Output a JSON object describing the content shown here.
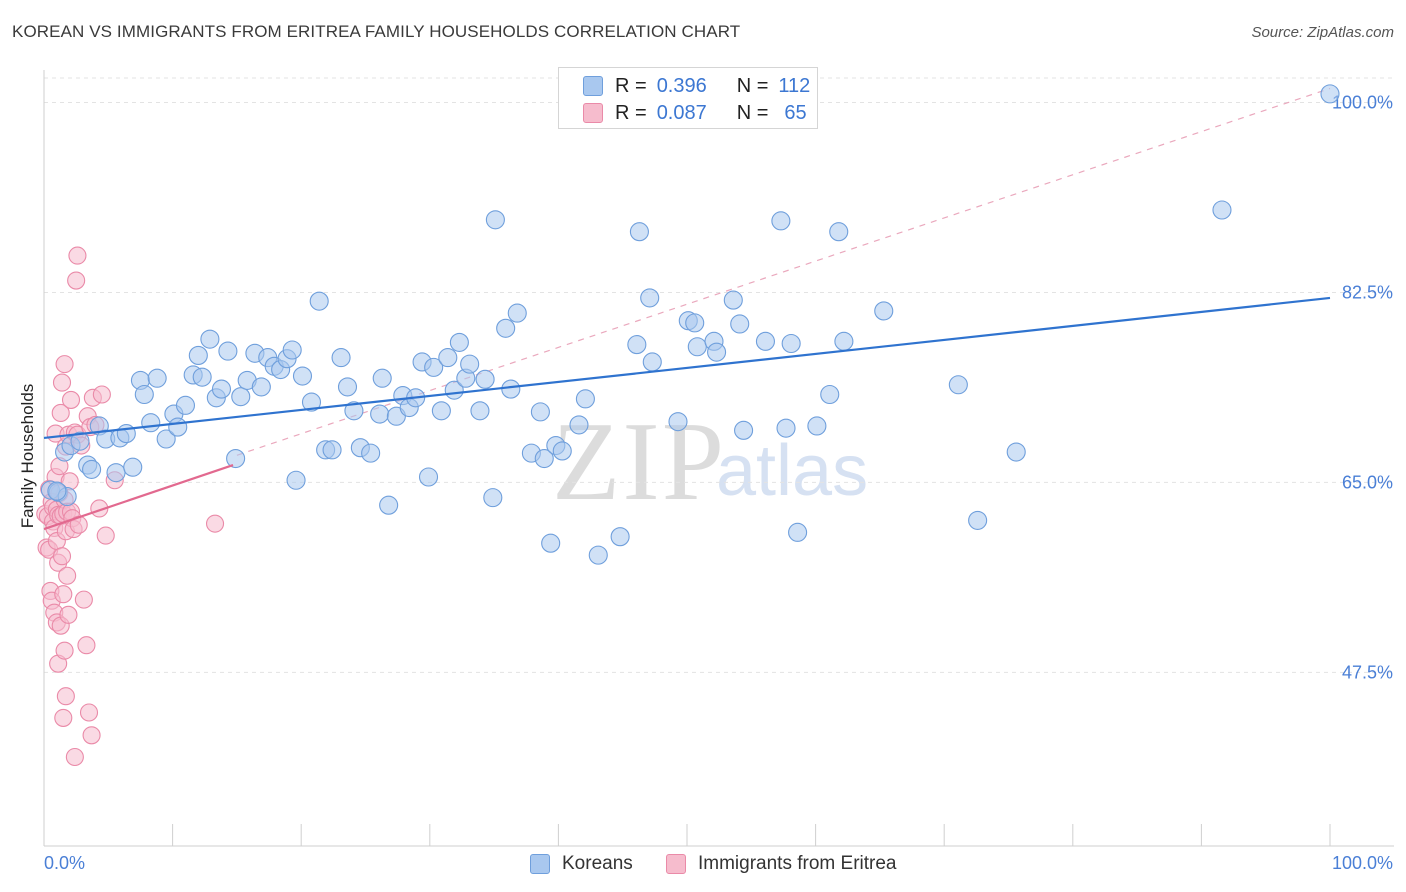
{
  "title": "KOREAN VS IMMIGRANTS FROM ERITREA FAMILY HOUSEHOLDS CORRELATION CHART",
  "source": "Source: ZipAtlas.com",
  "watermark": {
    "zip": "ZIP",
    "atlas": "atlas"
  },
  "legend": {
    "r_label": "R =",
    "n_label": "N =",
    "series": [
      {
        "name": "Koreans",
        "r": "0.396",
        "n": "112"
      },
      {
        "name": "Immigrants from Eritrea",
        "r": "0.087",
        "n": "65"
      }
    ]
  },
  "colors": {
    "blue_fill": "#a9c8ef",
    "blue_stroke": "#6f9fdc",
    "blue_line": "#2f73cf",
    "pink_fill": "#f6bccd",
    "pink_stroke": "#ea8aa8",
    "pink_line": "#e2698f",
    "grid": "#e3e3e3",
    "axis_label": "#4a7fd6"
  },
  "chart_data": {
    "type": "scatter",
    "title": "KOREAN VS IMMIGRANTS FROM ERITREA FAMILY HOUSEHOLDS CORRELATION CHART",
    "xlabel": "",
    "ylabel": "Family Households",
    "xlim": [
      0,
      100
    ],
    "ylim": [
      31.5,
      103
    ],
    "x_tick_labels": [
      "0.0%",
      "100.0%"
    ],
    "y_ticks": [
      47.5,
      65.0,
      82.5,
      100.0
    ],
    "y_tick_labels": [
      "47.5%",
      "65.0%",
      "82.5%",
      "100.0%"
    ],
    "grid": true,
    "series": [
      {
        "name": "Koreans",
        "color": "blue",
        "trend": {
          "x": [
            0,
            100
          ],
          "y": [
            69.1,
            82.0
          ]
        },
        "diagonal": {
          "x": [
            15,
            100
          ],
          "y": [
            67.5,
            101.3
          ]
        },
        "points": [
          [
            0.5,
            64.3
          ],
          [
            1.1,
            64.1
          ],
          [
            1.8,
            63.7
          ],
          [
            1.6,
            67.8
          ],
          [
            2.1,
            68.4
          ],
          [
            2.8,
            68.8
          ],
          [
            3.4,
            66.6
          ],
          [
            3.7,
            66.2
          ],
          [
            4.3,
            70.2
          ],
          [
            4.8,
            69.0
          ],
          [
            5.6,
            65.9
          ],
          [
            5.9,
            69.1
          ],
          [
            6.4,
            69.5
          ],
          [
            6.9,
            66.4
          ],
          [
            7.5,
            74.4
          ],
          [
            7.8,
            73.1
          ],
          [
            8.3,
            70.5
          ],
          [
            8.8,
            74.6
          ],
          [
            9.5,
            69.0
          ],
          [
            10.1,
            71.3
          ],
          [
            10.4,
            70.1
          ],
          [
            11.0,
            72.1
          ],
          [
            11.6,
            74.9
          ],
          [
            12.0,
            76.7
          ],
          [
            12.3,
            74.7
          ],
          [
            12.9,
            78.2
          ],
          [
            13.4,
            72.8
          ],
          [
            13.8,
            73.6
          ],
          [
            14.3,
            77.1
          ],
          [
            14.9,
            67.2
          ],
          [
            15.3,
            72.9
          ],
          [
            15.8,
            74.4
          ],
          [
            16.4,
            76.9
          ],
          [
            16.9,
            73.8
          ],
          [
            17.4,
            76.5
          ],
          [
            17.9,
            75.7
          ],
          [
            18.4,
            75.4
          ],
          [
            18.9,
            76.4
          ],
          [
            19.3,
            77.2
          ],
          [
            19.6,
            65.2
          ],
          [
            20.1,
            74.8
          ],
          [
            20.8,
            72.4
          ],
          [
            21.4,
            81.7
          ],
          [
            21.9,
            68.0
          ],
          [
            22.4,
            68.0
          ],
          [
            23.1,
            76.5
          ],
          [
            23.6,
            73.8
          ],
          [
            24.1,
            71.6
          ],
          [
            24.6,
            68.2
          ],
          [
            25.4,
            67.7
          ],
          [
            26.1,
            71.3
          ],
          [
            26.3,
            74.6
          ],
          [
            26.8,
            62.9
          ],
          [
            27.4,
            71.1
          ],
          [
            27.9,
            73.0
          ],
          [
            28.4,
            71.9
          ],
          [
            28.9,
            72.8
          ],
          [
            29.4,
            76.1
          ],
          [
            29.9,
            65.5
          ],
          [
            30.3,
            75.6
          ],
          [
            30.9,
            71.6
          ],
          [
            31.4,
            76.5
          ],
          [
            31.9,
            73.5
          ],
          [
            32.3,
            77.9
          ],
          [
            32.8,
            74.6
          ],
          [
            33.1,
            75.9
          ],
          [
            33.9,
            71.6
          ],
          [
            34.3,
            74.5
          ],
          [
            34.9,
            63.6
          ],
          [
            35.1,
            89.2
          ],
          [
            35.9,
            79.2
          ],
          [
            36.3,
            73.6
          ],
          [
            36.8,
            80.6
          ],
          [
            37.9,
            67.7
          ],
          [
            38.6,
            71.5
          ],
          [
            38.9,
            67.2
          ],
          [
            39.4,
            59.4
          ],
          [
            39.8,
            68.4
          ],
          [
            40.3,
            67.9
          ],
          [
            41.6,
            70.3
          ],
          [
            42.1,
            72.7
          ],
          [
            43.1,
            58.3
          ],
          [
            44.8,
            60.0
          ],
          [
            46.1,
            77.7
          ],
          [
            46.3,
            88.1
          ],
          [
            47.1,
            82.0
          ],
          [
            47.3,
            76.1
          ],
          [
            49.3,
            70.6
          ],
          [
            50.1,
            79.9
          ],
          [
            50.6,
            79.7
          ],
          [
            50.8,
            77.5
          ],
          [
            52.1,
            78.0
          ],
          [
            52.3,
            77.0
          ],
          [
            53.6,
            81.8
          ],
          [
            54.1,
            79.6
          ],
          [
            54.4,
            69.8
          ],
          [
            56.1,
            78.0
          ],
          [
            57.3,
            89.1
          ],
          [
            57.7,
            70.0
          ],
          [
            58.1,
            77.8
          ],
          [
            58.6,
            60.4
          ],
          [
            60.1,
            70.2
          ],
          [
            61.1,
            73.1
          ],
          [
            61.8,
            88.1
          ],
          [
            62.2,
            78.0
          ],
          [
            65.3,
            80.8
          ],
          [
            71.1,
            74.0
          ],
          [
            72.6,
            61.5
          ],
          [
            75.6,
            67.8
          ],
          [
            91.6,
            90.1
          ],
          [
            100.0,
            100.8
          ],
          [
            1.0,
            64.2
          ]
        ]
      },
      {
        "name": "Immigrants from Eritrea",
        "color": "pink",
        "trend": {
          "x": [
            0,
            14.7
          ],
          "y": [
            60.7,
            66.6
          ]
        },
        "points": [
          [
            0.1,
            62.1
          ],
          [
            0.2,
            59.0
          ],
          [
            0.3,
            61.9
          ],
          [
            0.4,
            64.4
          ],
          [
            0.4,
            58.8
          ],
          [
            0.5,
            55.0
          ],
          [
            0.6,
            63.2
          ],
          [
            0.6,
            54.1
          ],
          [
            0.7,
            62.7
          ],
          [
            0.7,
            61.4
          ],
          [
            0.8,
            60.8
          ],
          [
            0.8,
            53.0
          ],
          [
            0.9,
            69.5
          ],
          [
            0.9,
            65.5
          ],
          [
            1.0,
            62.5
          ],
          [
            1.0,
            59.6
          ],
          [
            1.0,
            52.1
          ],
          [
            1.1,
            62.0
          ],
          [
            1.1,
            57.6
          ],
          [
            1.1,
            48.3
          ],
          [
            1.2,
            66.5
          ],
          [
            1.2,
            64.0
          ],
          [
            1.3,
            71.4
          ],
          [
            1.3,
            61.9
          ],
          [
            1.3,
            51.8
          ],
          [
            1.4,
            74.2
          ],
          [
            1.4,
            58.2
          ],
          [
            1.5,
            62.1
          ],
          [
            1.5,
            54.7
          ],
          [
            1.5,
            43.3
          ],
          [
            1.6,
            75.9
          ],
          [
            1.6,
            63.4
          ],
          [
            1.6,
            49.5
          ],
          [
            1.7,
            68.3
          ],
          [
            1.7,
            60.5
          ],
          [
            1.7,
            45.3
          ],
          [
            1.8,
            62.3
          ],
          [
            1.8,
            56.4
          ],
          [
            1.9,
            69.4
          ],
          [
            1.9,
            52.8
          ],
          [
            2.0,
            65.1
          ],
          [
            2.1,
            62.3
          ],
          [
            2.1,
            72.6
          ],
          [
            2.2,
            61.7
          ],
          [
            2.3,
            60.7
          ],
          [
            2.4,
            39.7
          ],
          [
            2.4,
            69.6
          ],
          [
            2.5,
            83.6
          ],
          [
            2.6,
            69.4
          ],
          [
            2.6,
            85.9
          ],
          [
            2.7,
            61.1
          ],
          [
            2.9,
            68.4
          ],
          [
            3.1,
            54.2
          ],
          [
            3.3,
            50.0
          ],
          [
            3.4,
            71.1
          ],
          [
            3.5,
            43.8
          ],
          [
            3.6,
            70.1
          ],
          [
            3.7,
            41.7
          ],
          [
            3.8,
            72.8
          ],
          [
            4.0,
            70.3
          ],
          [
            4.3,
            62.6
          ],
          [
            4.5,
            73.1
          ],
          [
            4.8,
            60.1
          ],
          [
            5.5,
            65.2
          ],
          [
            13.3,
            61.2
          ]
        ]
      }
    ]
  }
}
